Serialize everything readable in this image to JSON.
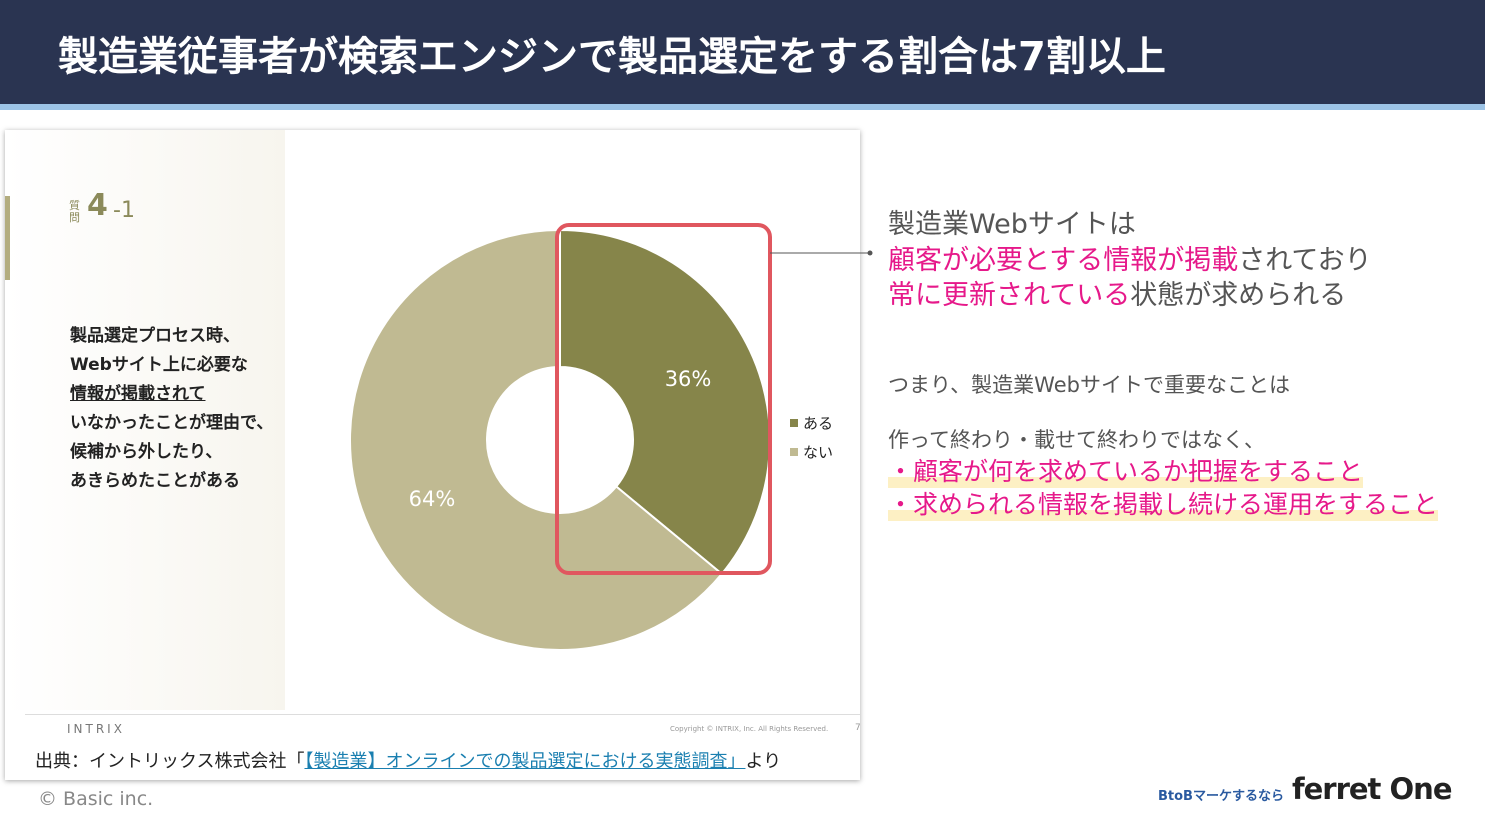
{
  "header": {
    "title": "製造業従事者が検索エンジンで製品選定をする割合は7割以上"
  },
  "chart_data": {
    "type": "pie",
    "question": {
      "label": "質問",
      "number": "4",
      "sub": "-1"
    },
    "description": [
      "製品選定プロセス時、",
      "Webサイト上に必要な",
      "情報が掲載されて",
      "いなかったことが理由で、",
      "候補から外したり、",
      "あきらめたことがある"
    ],
    "categories": [
      "ある",
      "ない"
    ],
    "values": [
      36,
      64
    ],
    "value_labels": [
      "36%",
      "64%"
    ],
    "colors": [
      "#86854a",
      "#c0ba92"
    ],
    "footer": {
      "brand": "INTRIX",
      "copyright": "Copyright © INTRIX, Inc. All Rights Reserved.",
      "page": "7"
    }
  },
  "source": {
    "prefix": "出典：イントリックス株式会社「",
    "link": "【製造業】オンラインでの製品選定における実態調査」",
    "suffix": "より"
  },
  "message": {
    "lead": "製造業Webサイトは",
    "line2": {
      "accent": "顧客が必要とする情報が掲載",
      "rest": "されており"
    },
    "line3": {
      "accent": "常に更新されている",
      "rest": "状態が求められる"
    },
    "summary": "つまり、製造業Webサイトで重要なことは",
    "intro": "作って終わり・載せて終わりではなく、",
    "points": [
      "・顧客が何を求めているか把握をすること",
      "・求められる情報を掲載し続ける運用をすること"
    ]
  },
  "footer": {
    "copyright": "© Basic inc.",
    "tagline": "BtoBマーケするなら",
    "logo": "ferret One"
  }
}
